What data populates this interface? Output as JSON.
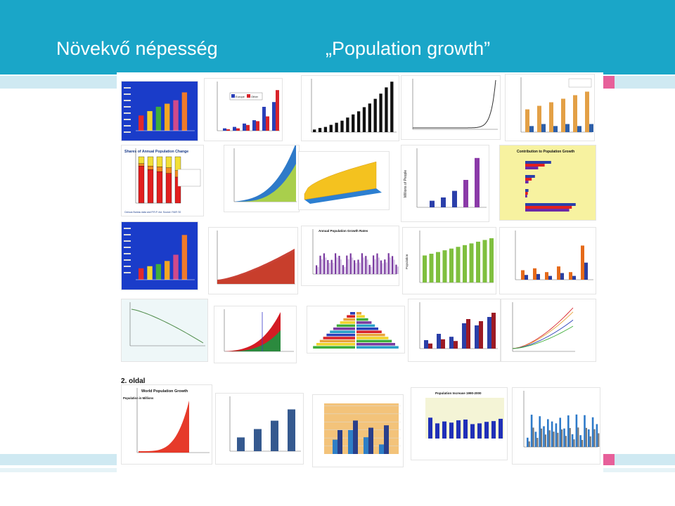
{
  "slide": {
    "title_hu": "Növekvő népesség",
    "title_en": "„Population growth”"
  },
  "collage": {
    "section_label": "2. oldal",
    "tiles": [
      {
        "id": "t1",
        "style": "blue-bars",
        "bars": [
          0.35,
          0.45,
          0.55,
          0.62,
          0.7,
          0.88
        ],
        "colors": [
          "#e3292b",
          "#f0d42b",
          "#3fae3a",
          "#f5a623",
          "#d04a8a",
          "#f07a2a"
        ]
      },
      {
        "id": "t2",
        "style": "red-blue-pairs",
        "title": "",
        "legend": [
          "Europe",
          "Other"
        ]
      },
      {
        "id": "t3",
        "style": "black-rising",
        "bars": [
          0.05,
          0.08,
          0.1,
          0.14,
          0.18,
          0.22,
          0.28,
          0.34,
          0.4,
          0.48,
          0.55,
          0.64,
          0.74,
          0.86,
          0.97
        ]
      },
      {
        "id": "t4",
        "style": "hockey-stick"
      },
      {
        "id": "t5",
        "style": "orange-blue-pairs",
        "legend": [
          "",
          "",
          ""
        ]
      },
      {
        "id": "t6",
        "style": "stacked-shares",
        "title": "Shares of Annual Population Change",
        "caption": "Census Bureau data and P.R.P. est. Source: FAIR '00"
      },
      {
        "id": "t7",
        "style": "blue-area"
      },
      {
        "id": "t8",
        "style": "yellow-3d"
      },
      {
        "id": "t9",
        "style": "millions-bars",
        "ylabel": "Millions of People"
      },
      {
        "id": "t10",
        "style": "contribution",
        "title": "Contribution to Population Growth"
      },
      {
        "id": "t11",
        "style": "blue-bars",
        "bars": [
          0.22,
          0.26,
          0.3,
          0.36,
          0.48,
          0.86
        ],
        "colors": [
          "#e3292b",
          "#f0d42b",
          "#3fae3a",
          "#f5a623",
          "#d04a8a",
          "#f07a2a"
        ]
      },
      {
        "id": "t12",
        "style": "stacked-area"
      },
      {
        "id": "t13",
        "style": "purple-bars",
        "title": "Annual Population Growth Rates"
      },
      {
        "id": "t14",
        "style": "green-bars",
        "ylabel": "Population"
      },
      {
        "id": "t15",
        "style": "orange-blue-growth"
      },
      {
        "id": "t16",
        "style": "declining-line"
      },
      {
        "id": "t17",
        "style": "red-green-area"
      },
      {
        "id": "t18",
        "style": "pyramid"
      },
      {
        "id": "t19",
        "style": "red-blue-pairs-2"
      },
      {
        "id": "t20",
        "style": "multi-lines"
      },
      {
        "id": "t21",
        "style": "world-growth",
        "title": "World Population Growth",
        "ylabel": "Population in Millions"
      },
      {
        "id": "t22",
        "style": "navy-bars"
      },
      {
        "id": "t23",
        "style": "orange-blue-3d"
      },
      {
        "id": "t24",
        "style": "blue-percent",
        "title": "Population Increase 1990-2000"
      },
      {
        "id": "t25",
        "style": "county-bars"
      }
    ]
  },
  "colors": {
    "header": "#1aa6c8",
    "accent_pink": "#e7609a",
    "strip": "#cfe9f2"
  }
}
